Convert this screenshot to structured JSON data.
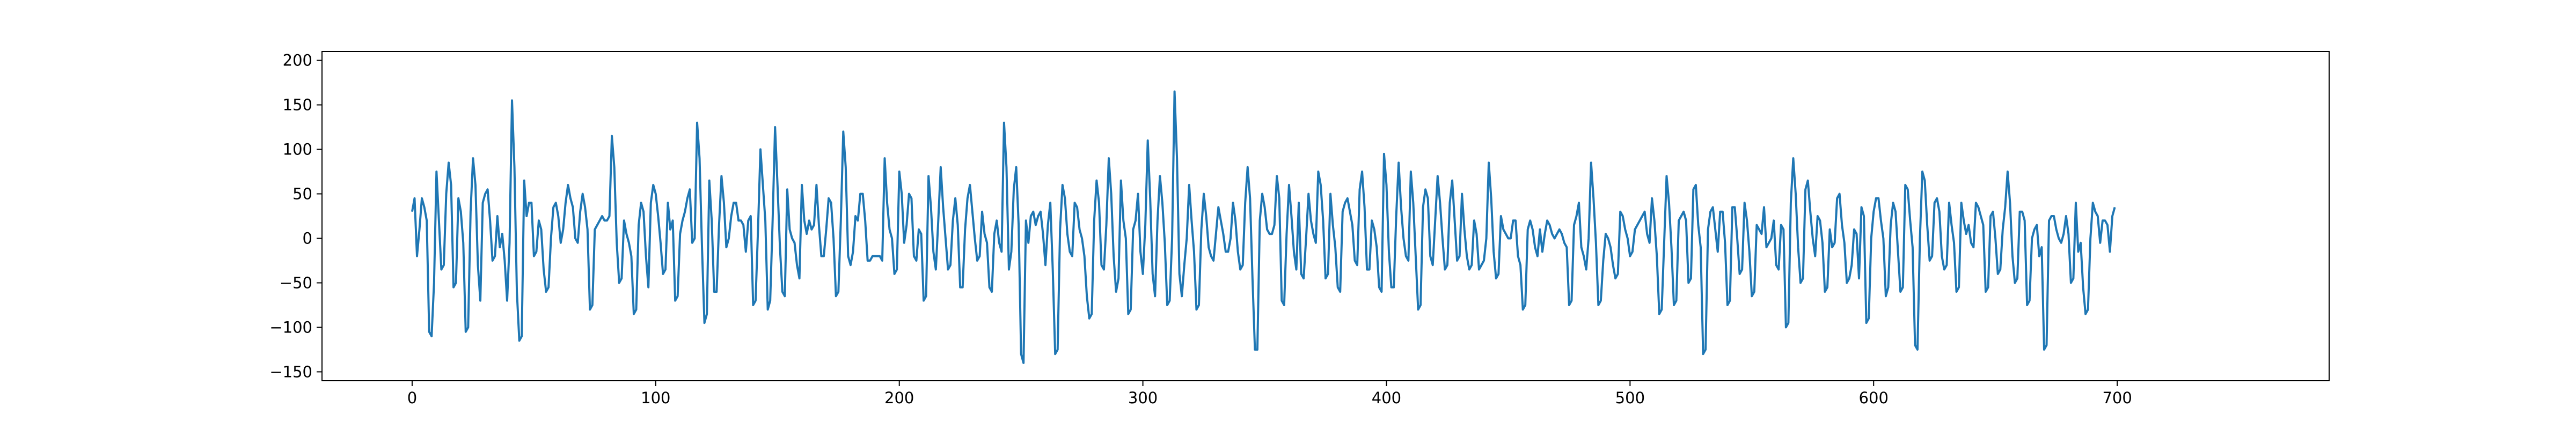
{
  "chart_data": {
    "type": "line",
    "title": "",
    "xlabel": "",
    "ylabel": "",
    "xlim": [
      -37,
      787
    ],
    "ylim": [
      -160,
      210
    ],
    "x_ticks": [
      0,
      100,
      200,
      300,
      400,
      500,
      600,
      700
    ],
    "x_tick_labels": [
      "0",
      "100",
      "200",
      "300",
      "400",
      "500",
      "600",
      "700"
    ],
    "y_ticks": [
      -150,
      -100,
      -50,
      0,
      50,
      100,
      150,
      200
    ],
    "y_tick_labels": [
      "−150",
      "−100",
      "−50",
      "0",
      "50",
      "100",
      "150",
      "200"
    ],
    "grid": false,
    "legend": "none",
    "line_color": "#1f77b4",
    "series": [
      {
        "x_start": 0,
        "x_step": 1,
        "values": [
          30,
          45,
          -20,
          10,
          45,
          35,
          20,
          -105,
          -110,
          -50,
          75,
          20,
          -35,
          -30,
          50,
          85,
          60,
          -55,
          -50,
          45,
          30,
          -5,
          -105,
          -100,
          30,
          90,
          60,
          -30,
          -70,
          40,
          50,
          55,
          20,
          -25,
          -20,
          25,
          -10,
          5,
          -25,
          -70,
          -5,
          155,
          80,
          -60,
          -115,
          -110,
          65,
          25,
          40,
          40,
          -20,
          -15,
          20,
          10,
          -35,
          -60,
          -55,
          0,
          35,
          40,
          25,
          -5,
          10,
          40,
          60,
          45,
          35,
          0,
          -5,
          30,
          50,
          35,
          10,
          -80,
          -75,
          10,
          15,
          20,
          25,
          20,
          20,
          25,
          115,
          80,
          -5,
          -50,
          -45,
          20,
          5,
          -5,
          -20,
          -85,
          -80,
          15,
          40,
          30,
          -20,
          -55,
          40,
          60,
          50,
          25,
          -5,
          -40,
          -35,
          40,
          10,
          20,
          -70,
          -65,
          5,
          20,
          30,
          45,
          55,
          -5,
          0,
          130,
          90,
          -10,
          -95,
          -85,
          65,
          20,
          -60,
          -60,
          15,
          70,
          40,
          -10,
          0,
          25,
          40,
          40,
          20,
          20,
          15,
          -15,
          20,
          25,
          -75,
          -70,
          10,
          100,
          60,
          20,
          -80,
          -70,
          20,
          125,
          60,
          -10,
          -60,
          -65,
          55,
          10,
          0,
          -5,
          -30,
          -45,
          60,
          20,
          5,
          20,
          10,
          15,
          60,
          15,
          -20,
          -20,
          10,
          45,
          40,
          0,
          -65,
          -60,
          20,
          120,
          80,
          -20,
          -30,
          -15,
          25,
          20,
          50,
          50,
          20,
          -25,
          -25,
          -20,
          -20,
          -20,
          -20,
          -25,
          90,
          40,
          10,
          0,
          -40,
          -35,
          75,
          50,
          -5,
          15,
          50,
          45,
          -20,
          -25,
          10,
          5,
          -70,
          -65,
          70,
          35,
          -15,
          -35,
          20,
          80,
          35,
          0,
          -35,
          -30,
          20,
          45,
          15,
          -55,
          -55,
          10,
          45,
          60,
          30,
          0,
          -25,
          -20,
          30,
          5,
          -5,
          -55,
          -60,
          5,
          20,
          -5,
          -15,
          130,
          80,
          -35,
          -15,
          55,
          80,
          15,
          -130,
          -140,
          20,
          -5,
          25,
          30,
          15,
          25,
          30,
          5,
          -30,
          15,
          40,
          -35,
          -130,
          -125,
          10,
          60,
          45,
          5,
          -15,
          -20,
          40,
          35,
          10,
          0,
          -20,
          -65,
          -90,
          -85,
          20,
          65,
          40,
          -30,
          -35,
          15,
          90,
          50,
          -20,
          -60,
          -45,
          65,
          20,
          0,
          -85,
          -80,
          10,
          20,
          50,
          -15,
          -40,
          15,
          110,
          45,
          -40,
          -65,
          20,
          70,
          40,
          -5,
          -75,
          -70,
          0,
          165,
          90,
          -40,
          -65,
          -30,
          0,
          60,
          20,
          -15,
          -80,
          -75,
          10,
          50,
          25,
          -10,
          -20,
          -25,
          5,
          35,
          20,
          5,
          -15,
          -15,
          0,
          40,
          20,
          -15,
          -35,
          -30,
          40,
          80,
          45,
          -45,
          -125,
          -125,
          20,
          50,
          35,
          10,
          5,
          5,
          15,
          70,
          45,
          -70,
          -75,
          5,
          60,
          25,
          -15,
          -35,
          40,
          -40,
          -45,
          0,
          50,
          20,
          5,
          -5,
          75,
          60,
          20,
          -45,
          -40,
          50,
          15,
          -10,
          -55,
          -60,
          30,
          40,
          45,
          30,
          15,
          -25,
          -30,
          55,
          75,
          35,
          -35,
          -35,
          20,
          10,
          -10,
          -55,
          -60,
          95,
          60,
          -15,
          -55,
          -55,
          25,
          85,
          35,
          0,
          -20,
          -25,
          75,
          40,
          -20,
          -80,
          -75,
          35,
          55,
          45,
          -20,
          -30,
          20,
          70,
          40,
          0,
          -35,
          -30,
          40,
          65,
          20,
          -25,
          -20,
          50,
          10,
          -20,
          -35,
          -30,
          20,
          5,
          -35,
          -30,
          -25,
          0,
          85,
          45,
          -15,
          -45,
          -40,
          25,
          10,
          5,
          0,
          0,
          20,
          20,
          -20,
          -30,
          -80,
          -75,
          10,
          20,
          10,
          -10,
          -20,
          10,
          -15,
          5,
          20,
          15,
          5,
          0,
          5,
          10,
          5,
          -5,
          -10,
          -75,
          -70,
          15,
          25,
          40,
          -10,
          -20,
          -35,
          0,
          85,
          45,
          -5,
          -75,
          -70,
          -25,
          5,
          0,
          -10,
          -30,
          -45,
          -40,
          30,
          25,
          10,
          0,
          -20,
          -15,
          10,
          15,
          20,
          25,
          30,
          5,
          -5,
          45,
          20,
          -20,
          -85,
          -80,
          -5,
          70,
          40,
          -10,
          -75,
          -70,
          20,
          25,
          30,
          20,
          -50,
          -45,
          55,
          60,
          15,
          -10,
          -130,
          -125,
          10,
          30,
          35,
          10,
          -15,
          30,
          30,
          -5,
          -75,
          -70,
          35,
          35,
          0,
          -40,
          -35,
          40,
          20,
          -15,
          -65,
          -60,
          15,
          10,
          5,
          35,
          -10,
          -5,
          0,
          20,
          -30,
          -35,
          15,
          10,
          -100,
          -95,
          40,
          90,
          50,
          -10,
          -50,
          -45,
          55,
          65,
          30,
          0,
          -20,
          25,
          20,
          -5,
          -60,
          -55,
          10,
          -10,
          -5,
          45,
          50,
          15,
          -5,
          -50,
          -45,
          -30,
          10,
          5,
          -45,
          35,
          25,
          -95,
          -90,
          0,
          30,
          45,
          45,
          20,
          0,
          -65,
          -55,
          15,
          40,
          30,
          -15,
          -60,
          -55,
          60,
          55,
          20,
          -10,
          -120,
          -125,
          0,
          75,
          65,
          15,
          -25,
          -20,
          40,
          45,
          30,
          -20,
          -35,
          -30,
          40,
          15,
          -5,
          -60,
          -55,
          40,
          20,
          5,
          15,
          -5,
          -10,
          40,
          35,
          25,
          15,
          -60,
          -55,
          25,
          30,
          0,
          -40,
          -35,
          10,
          35,
          75,
          40,
          -20,
          -50,
          -45,
          30,
          30,
          20,
          -75,
          -70,
          0,
          10,
          15,
          -20,
          -10,
          -125,
          -120,
          20,
          25,
          25,
          10,
          0,
          -5,
          5,
          25,
          5,
          -50,
          -45,
          40,
          -15,
          -5,
          -55,
          -85,
          -80,
          0,
          40,
          30,
          25,
          -5,
          20,
          20,
          15,
          -15,
          25,
          35
        ]
      }
    ]
  }
}
